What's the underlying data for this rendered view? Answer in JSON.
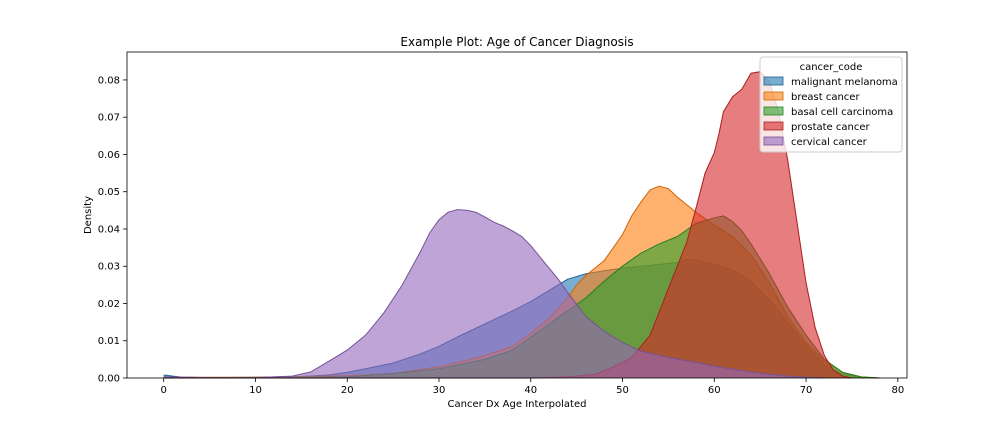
{
  "chart_data": {
    "type": "area",
    "title": "Example Plot: Age of Cancer Diagnosis",
    "xlabel": "Cancer Dx Age Interpolated",
    "ylabel": "Density",
    "xlim": [
      -4,
      81
    ],
    "ylim": [
      0,
      0.0875
    ],
    "xticks": [
      0,
      10,
      20,
      30,
      40,
      50,
      60,
      70,
      80
    ],
    "yticks": [
      0.0,
      0.01,
      0.02,
      0.03,
      0.04,
      0.05,
      0.06,
      0.07,
      0.08
    ],
    "ytick_labels": [
      "0.00",
      "0.01",
      "0.02",
      "0.03",
      "0.04",
      "0.05",
      "0.06",
      "0.07",
      "0.08"
    ],
    "grid": false,
    "legend": {
      "title": "cancer_code",
      "placement": "top-right"
    },
    "series": [
      {
        "name": "malignant melanoma",
        "color": "#1f77b4",
        "points": [
          [
            0,
            0.0008
          ],
          [
            2,
            0.0002
          ],
          [
            5,
            0.0001
          ],
          [
            10,
            0.0002
          ],
          [
            15,
            0.0004
          ],
          [
            18,
            0.0008
          ],
          [
            20,
            0.0015
          ],
          [
            22,
            0.0025
          ],
          [
            25,
            0.004
          ],
          [
            28,
            0.0065
          ],
          [
            30,
            0.0085
          ],
          [
            32,
            0.011
          ],
          [
            35,
            0.0145
          ],
          [
            38,
            0.018
          ],
          [
            40,
            0.0205
          ],
          [
            42,
            0.0235
          ],
          [
            44,
            0.0265
          ],
          [
            46,
            0.028
          ],
          [
            48,
            0.0288
          ],
          [
            50,
            0.0295
          ],
          [
            52,
            0.03
          ],
          [
            54,
            0.0305
          ],
          [
            56,
            0.031
          ],
          [
            57,
            0.0318
          ],
          [
            58,
            0.0316
          ],
          [
            60,
            0.0305
          ],
          [
            62,
            0.029
          ],
          [
            64,
            0.026
          ],
          [
            66,
            0.021
          ],
          [
            68,
            0.015
          ],
          [
            70,
            0.0085
          ],
          [
            72,
            0.0035
          ],
          [
            74,
            0.001
          ],
          [
            76,
            0.0002
          ],
          [
            78,
            0
          ]
        ]
      },
      {
        "name": "breast cancer",
        "color": "#ff7f0e",
        "points": [
          [
            0,
            0.0002
          ],
          [
            10,
            0.0002
          ],
          [
            20,
            0.0006
          ],
          [
            25,
            0.0012
          ],
          [
            30,
            0.003
          ],
          [
            35,
            0.006
          ],
          [
            38,
            0.0085
          ],
          [
            40,
            0.012
          ],
          [
            42,
            0.016
          ],
          [
            44,
            0.0215
          ],
          [
            45,
            0.025
          ],
          [
            46,
            0.0275
          ],
          [
            48,
            0.0315
          ],
          [
            50,
            0.0385
          ],
          [
            51,
            0.0435
          ],
          [
            52,
            0.0472
          ],
          [
            53,
            0.0505
          ],
          [
            54,
            0.0515
          ],
          [
            55,
            0.0508
          ],
          [
            56,
            0.0485
          ],
          [
            58,
            0.0445
          ],
          [
            60,
            0.041
          ],
          [
            62,
            0.038
          ],
          [
            64,
            0.033
          ],
          [
            66,
            0.0255
          ],
          [
            68,
            0.0165
          ],
          [
            70,
            0.0095
          ],
          [
            72,
            0.0045
          ],
          [
            74,
            0.0015
          ],
          [
            76,
            0.0003
          ],
          [
            78,
            0
          ]
        ]
      },
      {
        "name": "basal cell carcinoma",
        "color": "#2ca02c",
        "points": [
          [
            0,
            0
          ],
          [
            10,
            0.0001
          ],
          [
            20,
            0.0003
          ],
          [
            25,
            0.0012
          ],
          [
            30,
            0.0025
          ],
          [
            35,
            0.005
          ],
          [
            38,
            0.0075
          ],
          [
            40,
            0.011
          ],
          [
            42,
            0.0145
          ],
          [
            44,
            0.018
          ],
          [
            46,
            0.0215
          ],
          [
            48,
            0.026
          ],
          [
            50,
            0.03
          ],
          [
            52,
            0.0335
          ],
          [
            54,
            0.036
          ],
          [
            56,
            0.038
          ],
          [
            58,
            0.0415
          ],
          [
            60,
            0.043
          ],
          [
            61,
            0.0435
          ],
          [
            62,
            0.042
          ],
          [
            63,
            0.0395
          ],
          [
            64,
            0.036
          ],
          [
            66,
            0.028
          ],
          [
            68,
            0.019
          ],
          [
            70,
            0.0115
          ],
          [
            72,
            0.005
          ],
          [
            74,
            0.0015
          ],
          [
            76,
            0.0003
          ],
          [
            78,
            0
          ]
        ]
      },
      {
        "name": "prostate cancer",
        "color": "#d62728",
        "points": [
          [
            0,
            0
          ],
          [
            20,
            0
          ],
          [
            30,
            0
          ],
          [
            40,
            0
          ],
          [
            44,
            0.0003
          ],
          [
            47,
            0.001
          ],
          [
            49,
            0.003
          ],
          [
            51,
            0.0055
          ],
          [
            53,
            0.0115
          ],
          [
            55,
            0.024
          ],
          [
            57,
            0.0365
          ],
          [
            58,
            0.0455
          ],
          [
            59,
            0.055
          ],
          [
            60,
            0.0605
          ],
          [
            60.5,
            0.0655
          ],
          [
            61,
            0.0715
          ],
          [
            62,
            0.0755
          ],
          [
            63,
            0.0775
          ],
          [
            64,
            0.0818
          ],
          [
            65,
            0.0822
          ],
          [
            66,
            0.0795
          ],
          [
            67,
            0.0715
          ],
          [
            68,
            0.0585
          ],
          [
            69,
            0.042
          ],
          [
            70,
            0.0255
          ],
          [
            71,
            0.0135
          ],
          [
            72,
            0.006
          ],
          [
            73,
            0.002
          ],
          [
            74,
            0.0005
          ],
          [
            75,
            0
          ]
        ]
      },
      {
        "name": "cervical cancer",
        "color": "#9467bd",
        "points": [
          [
            0,
            0.0003
          ],
          [
            5,
            0.0001
          ],
          [
            10,
            0.0001
          ],
          [
            14,
            0.0005
          ],
          [
            16,
            0.0016
          ],
          [
            18,
            0.0045
          ],
          [
            20,
            0.0075
          ],
          [
            22,
            0.0115
          ],
          [
            24,
            0.0175
          ],
          [
            26,
            0.025
          ],
          [
            28,
            0.034
          ],
          [
            29,
            0.039
          ],
          [
            30,
            0.0425
          ],
          [
            31,
            0.0445
          ],
          [
            32,
            0.0452
          ],
          [
            33,
            0.045
          ],
          [
            34,
            0.0445
          ],
          [
            35,
            0.0432
          ],
          [
            36,
            0.0418
          ],
          [
            37,
            0.0408
          ],
          [
            38,
            0.0395
          ],
          [
            39,
            0.038
          ],
          [
            40,
            0.0355
          ],
          [
            41,
            0.0325
          ],
          [
            42,
            0.0295
          ],
          [
            43,
            0.0265
          ],
          [
            44,
            0.023
          ],
          [
            46,
            0.0165
          ],
          [
            48,
            0.0125
          ],
          [
            50,
            0.0095
          ],
          [
            52,
            0.0072
          ],
          [
            55,
            0.0055
          ],
          [
            58,
            0.0042
          ],
          [
            60,
            0.0032
          ],
          [
            62,
            0.0024
          ],
          [
            64,
            0.0016
          ],
          [
            66,
            0.001
          ],
          [
            68,
            0.0005
          ],
          [
            70,
            0.0002
          ],
          [
            72,
            0
          ]
        ]
      }
    ]
  }
}
